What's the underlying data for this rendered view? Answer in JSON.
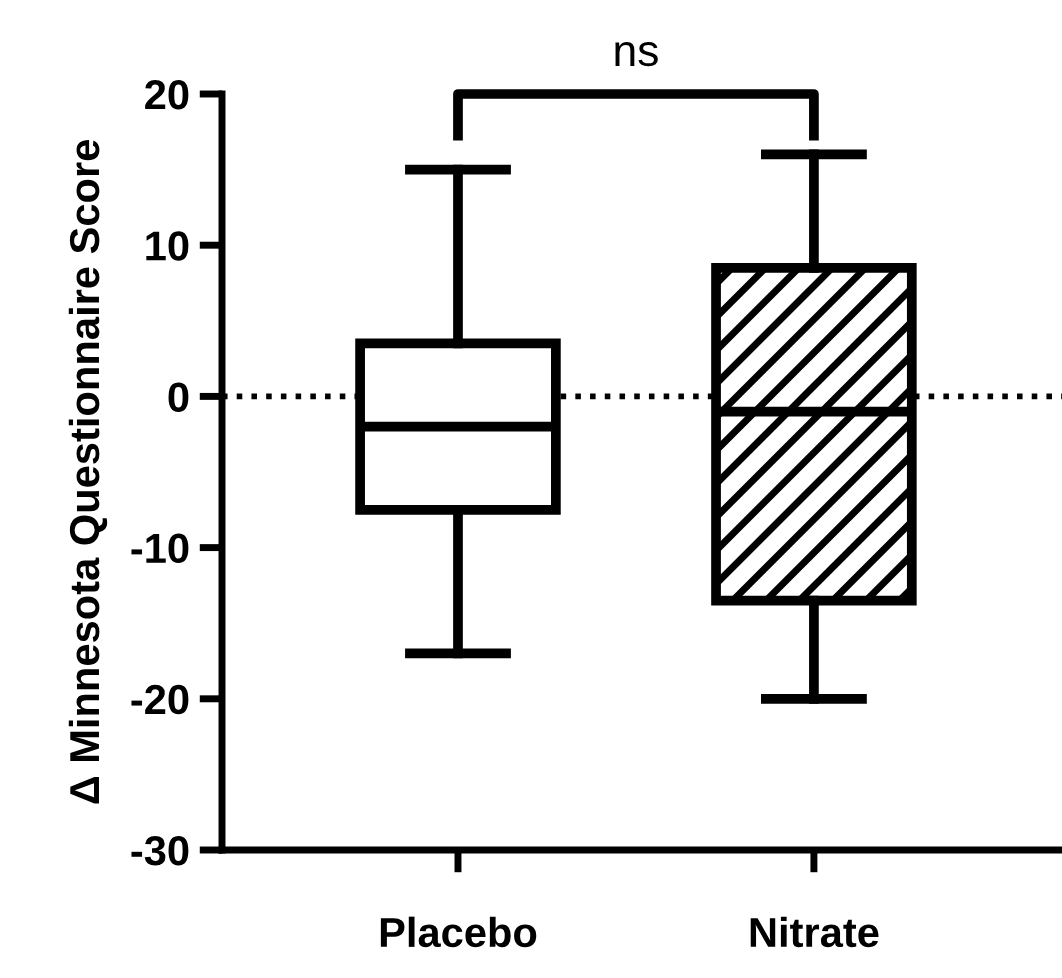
{
  "chart_data": {
    "type": "box",
    "ylabel": "Δ Minnesota Questionnaire Score",
    "categories": [
      "Placebo",
      "Nitrate"
    ],
    "boxes": [
      {
        "low": -17,
        "q1": -7.5,
        "median": -2,
        "q3": 3.5,
        "high": 15
      },
      {
        "low": -20,
        "q1": -13.5,
        "median": -1,
        "q3": 8.5,
        "high": 16
      }
    ],
    "ylim": [
      -30,
      20
    ],
    "yticks": [
      -30,
      -20,
      -10,
      0,
      10,
      20
    ],
    "ref_lines": [
      {
        "axis": "y",
        "value": 0,
        "line_style": "dotted",
        "color": "#000000"
      }
    ],
    "annotations": [
      "ns"
    ],
    "grid": false
  }
}
